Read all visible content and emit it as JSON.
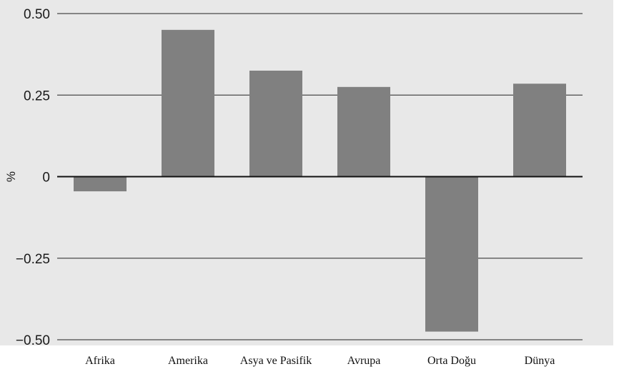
{
  "chart_data": {
    "type": "bar",
    "title": "",
    "xlabel": "",
    "ylabel": "%",
    "categories": [
      "Afrika",
      "Amerika",
      "Asya ve Pasifik",
      "Avrupa",
      "Orta Doğu",
      "Dünya"
    ],
    "values": [
      -0.045,
      0.45,
      0.325,
      0.275,
      -0.475,
      0.285
    ],
    "ylim": [
      -0.5,
      0.5
    ],
    "yticks": [
      0.5,
      0.25,
      0,
      -0.25,
      -0.5
    ],
    "ytick_labels": [
      "0.50",
      "0.25",
      "0",
      "−0.25",
      "−0.50"
    ],
    "grid": true,
    "colors": {
      "plot_background": "#e8e8e8",
      "bar": "#808080",
      "gridline": "#4a4a4a",
      "zero_line": "#111111"
    }
  }
}
